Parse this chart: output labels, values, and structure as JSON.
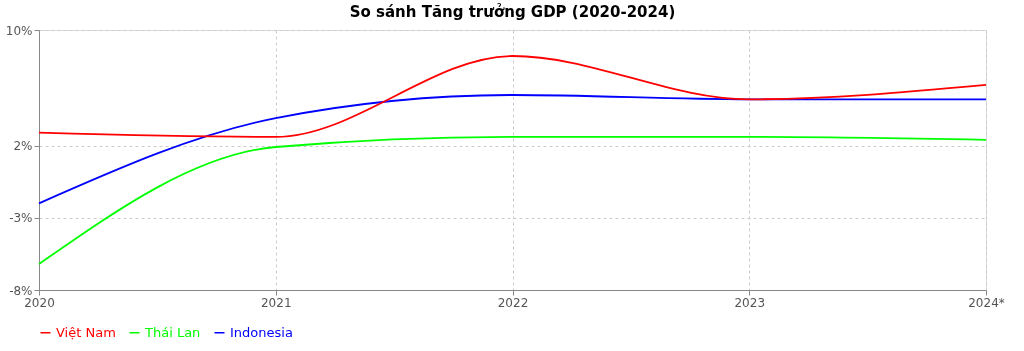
{
  "chart_data": {
    "type": "line",
    "title": "So sánh Tăng trưởng GDP (2020-2024)",
    "categories": [
      "2020",
      "2021",
      "2022",
      "2023",
      "2024*"
    ],
    "series": [
      {
        "name": "Việt Nam",
        "color": "#ff0000",
        "values": [
          2.9,
          2.6,
          8.2,
          5.2,
          6.2
        ]
      },
      {
        "name": "Thái Lan",
        "color": "#00ff00",
        "values": [
          -6.2,
          1.9,
          2.6,
          2.6,
          2.4
        ]
      },
      {
        "name": "Indonesia",
        "color": "#0000ff",
        "values": [
          -2.0,
          3.9,
          5.5,
          5.2,
          5.2
        ]
      }
    ],
    "ylim": [
      -8,
      10
    ],
    "yticks": [
      {
        "value": -8,
        "label": "-8%"
      },
      {
        "value": -3,
        "label": "-3%"
      },
      {
        "value": 2,
        "label": "2%"
      },
      {
        "value": 10,
        "label": "10%"
      }
    ],
    "grid": true,
    "legend": "bottom",
    "marker": "none",
    "line_style": "solid"
  }
}
